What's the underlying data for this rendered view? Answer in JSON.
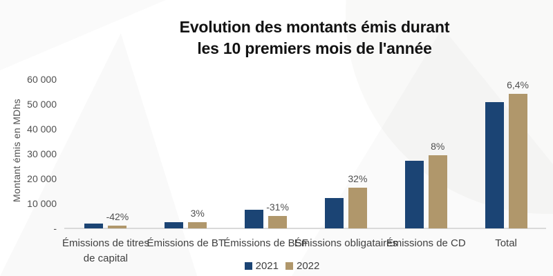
{
  "title": {
    "line1": "Evolution des montants émis durant",
    "line2": "les 10 premiers mois de l'année"
  },
  "chart_data": {
    "type": "bar",
    "title": "Evolution des montants émis durant les 10 premiers mois de l'année",
    "xlabel": "",
    "ylabel": "Montant émis en MDhs",
    "unit": "MDhs",
    "ylim": [
      0,
      60000
    ],
    "grid": false,
    "legend_position": "bottom",
    "y_ticks": [
      {
        "label": "60 000",
        "value": 60000
      },
      {
        "label": "50 000",
        "value": 50000
      },
      {
        "label": "40 000",
        "value": 40000
      },
      {
        "label": "30 000",
        "value": 30000
      },
      {
        "label": "20 000",
        "value": 20000
      },
      {
        "label": "10 000",
        "value": 10000
      },
      {
        "label": "-",
        "value": 0
      }
    ],
    "categories": [
      "Émissions de titres\nde capital",
      "Émissions de BT",
      "Émissions de BSF",
      "Émissions obligataires",
      "Émissions de CD",
      "Total"
    ],
    "series": [
      {
        "name": "2021",
        "color": "#1b4474",
        "values": [
          2000,
          2550,
          7400,
          12350,
          27200,
          50900
        ]
      },
      {
        "name": "2022",
        "color": "#b0976b",
        "values": [
          1160,
          2625,
          5100,
          16300,
          29400,
          54160
        ]
      }
    ],
    "annotations": [
      "-42%",
      "3%",
      "-31%",
      "32%",
      "8%",
      "6,4%"
    ],
    "annotation_series": "2022"
  },
  "colors": {
    "bar_2021": "#1b4474",
    "bar_2022": "#b0976b",
    "axis_line": "#d9d9d9",
    "text_gray": "#4f4f4f",
    "title_color": "#121212"
  }
}
